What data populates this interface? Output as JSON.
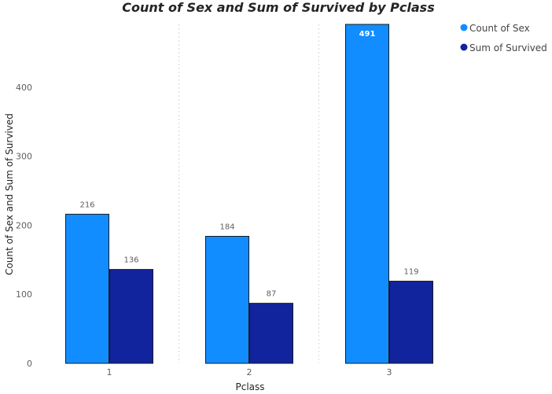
{
  "chart_data": {
    "type": "bar",
    "title": "Count of Sex and Sum of Survived by Pclass",
    "xlabel": "Pclass",
    "ylabel": "Count of Sex and Sum of Survived",
    "categories": [
      "1",
      "2",
      "3"
    ],
    "series": [
      {
        "name": "Count of Sex",
        "values": [
          216,
          184,
          491
        ],
        "color": "#118dff"
      },
      {
        "name": "Sum of Survived",
        "values": [
          136,
          87,
          119
        ],
        "color": "#12239e"
      }
    ],
    "yticks": [
      0,
      100,
      200,
      300,
      400
    ],
    "ylim": [
      0,
      491
    ],
    "grid": "vertical dashed separators between categories",
    "legend_position": "top-right",
    "data_labels": [
      "216",
      "136",
      "184",
      "87",
      "491",
      "119"
    ]
  }
}
